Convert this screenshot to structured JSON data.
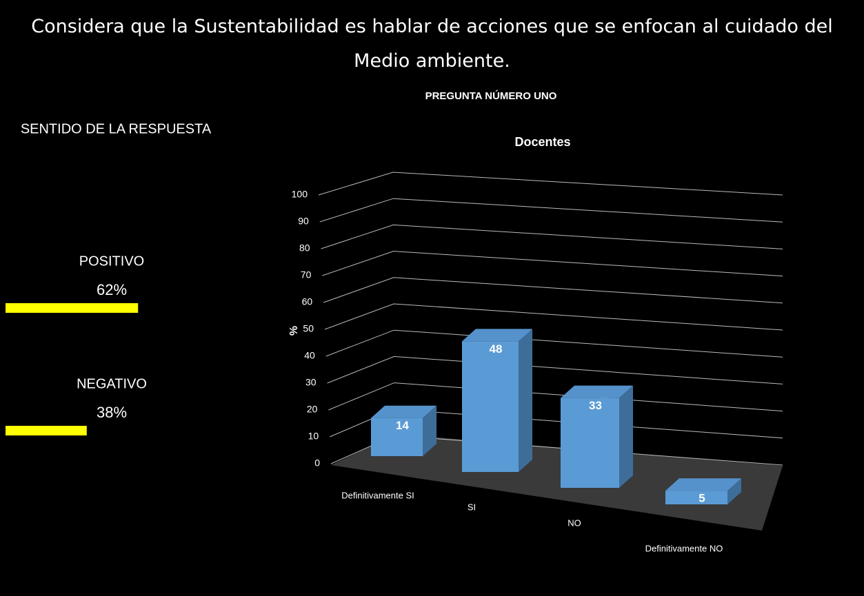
{
  "slide": {
    "title": "Considera que la Sustentabilidad es hablar de acciones que se enfocan al cuidado del Medio ambiente."
  },
  "summary": {
    "title": "SENTIDO DE LA RESPUESTA",
    "color": "#ffff00",
    "items": [
      {
        "label": "POSITIVO",
        "value": 62,
        "value_label": "62%"
      },
      {
        "label": "NEGATIVO",
        "value": 38,
        "value_label": "38%"
      }
    ]
  },
  "chart_data": {
    "type": "bar3d",
    "title": "PREGUNTA NÚMERO UNO",
    "subtitle": "Docentes",
    "y_label": "%",
    "categories": [
      "Definitivamente SI",
      "SI",
      "NO",
      "Definitivamente NO"
    ],
    "values": [
      14,
      48,
      33,
      5
    ],
    "color": "#5b9bd5",
    "ylim": [
      0,
      100
    ],
    "yticks": [
      0,
      10,
      20,
      30,
      40,
      50,
      60,
      70,
      80,
      90,
      100
    ],
    "grid": true
  }
}
